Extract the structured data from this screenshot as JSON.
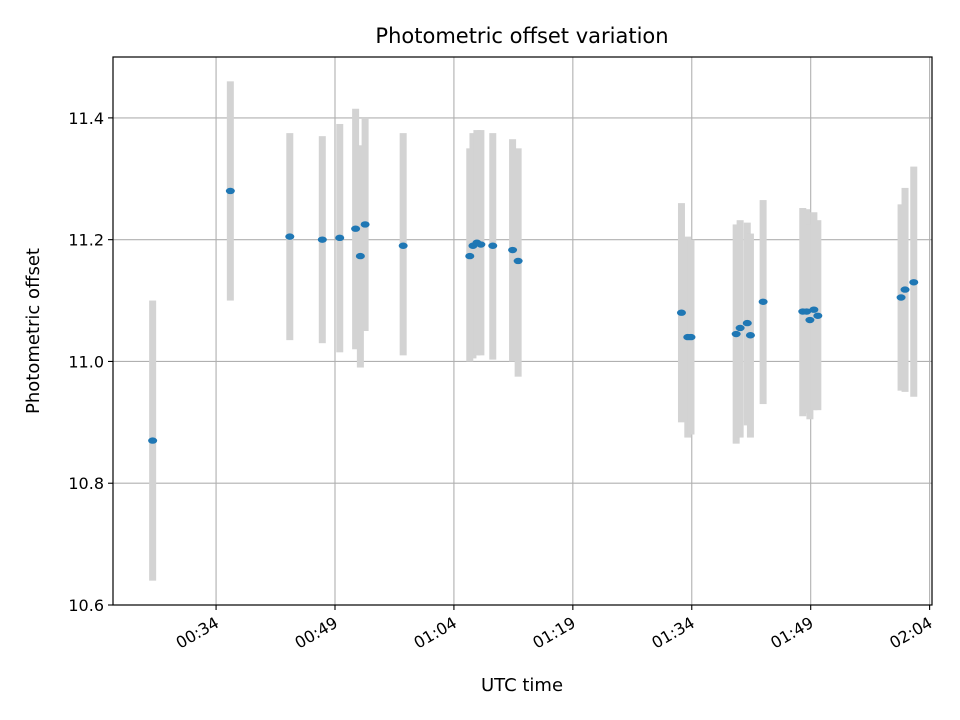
{
  "chart_data": {
    "type": "scatter",
    "title": "Photometric offset variation",
    "xlabel": "UTC time",
    "ylabel": "Photometric offset",
    "x_ticks": [
      "00:34",
      "00:49",
      "01:04",
      "01:19",
      "01:34",
      "01:49",
      "02:04"
    ],
    "x_tick_minutes": [
      34,
      49,
      64,
      79,
      94,
      109,
      124
    ],
    "xlim_minutes": [
      21,
      124.3
    ],
    "y_ticks": [
      "10.6",
      "10.8",
      "11.0",
      "11.2",
      "11.4"
    ],
    "y_tick_values": [
      10.6,
      10.8,
      11.0,
      11.2,
      11.4
    ],
    "ylim": [
      10.6,
      11.5
    ],
    "grid": true,
    "marker_color": "#1f77b4",
    "errorbar_color": "#d3d3d3",
    "series": [
      {
        "points": [
          {
            "x": 26.0,
            "y": 10.87,
            "ylo": 10.64,
            "yhi": 11.1
          },
          {
            "x": 35.8,
            "y": 11.28,
            "ylo": 11.1,
            "yhi": 11.46
          },
          {
            "x": 43.3,
            "y": 11.205,
            "ylo": 11.035,
            "yhi": 11.375
          },
          {
            "x": 47.4,
            "y": 11.2,
            "ylo": 11.03,
            "yhi": 11.37
          },
          {
            "x": 49.6,
            "y": 11.203,
            "ylo": 11.015,
            "yhi": 11.39
          },
          {
            "x": 51.6,
            "y": 11.218,
            "ylo": 11.02,
            "yhi": 11.415
          },
          {
            "x": 52.2,
            "y": 11.173,
            "ylo": 10.99,
            "yhi": 11.355
          },
          {
            "x": 52.8,
            "y": 11.225,
            "ylo": 11.05,
            "yhi": 11.4
          },
          {
            "x": 57.6,
            "y": 11.19,
            "ylo": 11.01,
            "yhi": 11.375
          },
          {
            "x": 66.0,
            "y": 11.173,
            "ylo": 11.0,
            "yhi": 11.35
          },
          {
            "x": 66.4,
            "y": 11.19,
            "ylo": 11.005,
            "yhi": 11.375
          },
          {
            "x": 66.9,
            "y": 11.195,
            "ylo": 11.01,
            "yhi": 11.38
          },
          {
            "x": 67.4,
            "y": 11.192,
            "ylo": 11.01,
            "yhi": 11.38
          },
          {
            "x": 68.9,
            "y": 11.19,
            "ylo": 11.003,
            "yhi": 11.375
          },
          {
            "x": 71.4,
            "y": 11.183,
            "ylo": 11.0,
            "yhi": 11.365
          },
          {
            "x": 72.1,
            "y": 11.165,
            "ylo": 10.975,
            "yhi": 11.35
          },
          {
            "x": 92.7,
            "y": 11.08,
            "ylo": 10.9,
            "yhi": 11.26
          },
          {
            "x": 93.5,
            "y": 11.04,
            "ylo": 10.875,
            "yhi": 11.205
          },
          {
            "x": 93.9,
            "y": 11.04,
            "ylo": 10.88,
            "yhi": 11.2
          },
          {
            "x": 99.6,
            "y": 11.045,
            "ylo": 10.865,
            "yhi": 11.225
          },
          {
            "x": 100.1,
            "y": 11.055,
            "ylo": 10.875,
            "yhi": 11.232
          },
          {
            "x": 101.0,
            "y": 11.063,
            "ylo": 10.895,
            "yhi": 11.228
          },
          {
            "x": 101.4,
            "y": 11.043,
            "ylo": 10.875,
            "yhi": 11.21
          },
          {
            "x": 103.0,
            "y": 11.098,
            "ylo": 10.93,
            "yhi": 11.265
          },
          {
            "x": 108.0,
            "y": 11.082,
            "ylo": 10.91,
            "yhi": 11.252
          },
          {
            "x": 108.5,
            "y": 11.082,
            "ylo": 10.915,
            "yhi": 11.25
          },
          {
            "x": 108.9,
            "y": 11.068,
            "ylo": 10.905,
            "yhi": 11.225
          },
          {
            "x": 109.4,
            "y": 11.085,
            "ylo": 10.92,
            "yhi": 11.245
          },
          {
            "x": 109.9,
            "y": 11.075,
            "ylo": 10.92,
            "yhi": 11.232
          },
          {
            "x": 120.4,
            "y": 11.105,
            "ylo": 10.952,
            "yhi": 11.258
          },
          {
            "x": 120.9,
            "y": 11.118,
            "ylo": 10.95,
            "yhi": 11.285
          },
          {
            "x": 122.0,
            "y": 11.13,
            "ylo": 10.942,
            "yhi": 11.32
          }
        ]
      }
    ]
  }
}
